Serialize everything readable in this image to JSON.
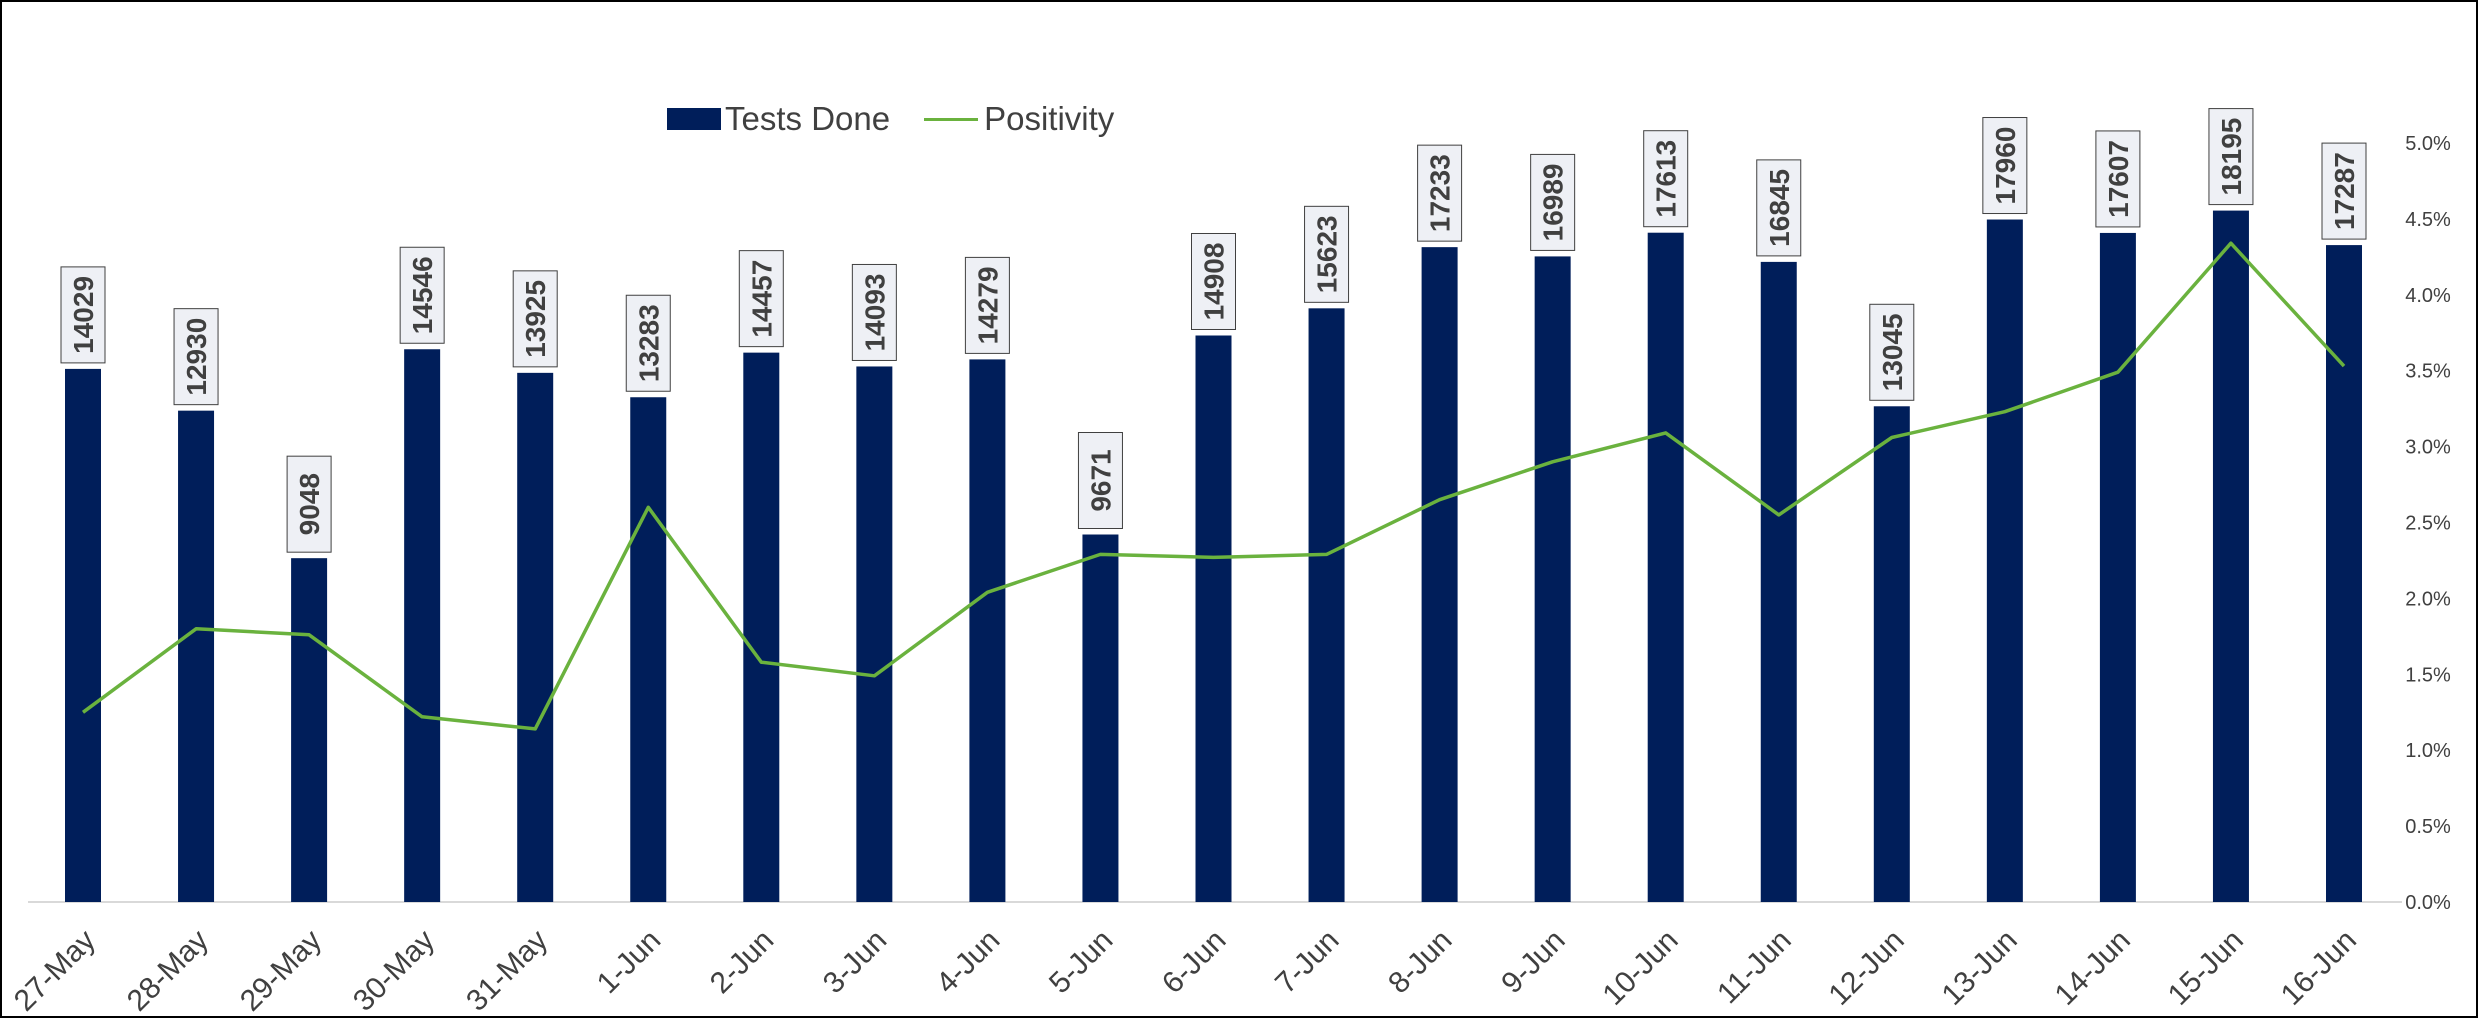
{
  "chart_data": {
    "type": "bar+line",
    "categories": [
      "27-May",
      "28-May",
      "29-May",
      "30-May",
      "31-May",
      "1-Jun",
      "2-Jun",
      "3-Jun",
      "4-Jun",
      "5-Jun",
      "6-Jun",
      "7-Jun",
      "8-Jun",
      "9-Jun",
      "10-Jun",
      "11-Jun",
      "12-Jun",
      "13-Jun",
      "14-Jun",
      "15-Jun",
      "16-Jun"
    ],
    "series": [
      {
        "name": "Tests Done",
        "type": "bar",
        "axis": "left",
        "color": "#001E5A",
        "values": [
          14029,
          12930,
          9048,
          14546,
          13925,
          13283,
          14457,
          14093,
          14279,
          9671,
          14908,
          15623,
          17233,
          16989,
          17613,
          16845,
          13045,
          17960,
          17607,
          18195,
          17287
        ]
      },
      {
        "name": "Positivity",
        "type": "line",
        "axis": "right",
        "color": "#6AB23E",
        "values": [
          1.25,
          1.8,
          1.76,
          1.22,
          1.14,
          2.6,
          1.58,
          1.49,
          2.04,
          2.29,
          2.27,
          2.29,
          2.65,
          2.9,
          3.09,
          2.55,
          3.06,
          3.23,
          3.49,
          4.34,
          3.53
        ]
      }
    ],
    "y_right": {
      "ticks": [
        "0.0%",
        "0.5%",
        "1.0%",
        "1.5%",
        "2.0%",
        "2.5%",
        "3.0%",
        "3.5%",
        "4.0%",
        "4.5%",
        "5.0%"
      ],
      "range": [
        0,
        5.0
      ]
    },
    "y_left": {
      "range": [
        0,
        20000
      ],
      "visible": false
    },
    "legend": {
      "placement": "top-left",
      "items": [
        "Tests Done",
        "Positivity"
      ]
    },
    "grid": false,
    "data_labels": true,
    "x_tick_rotation": -45
  }
}
